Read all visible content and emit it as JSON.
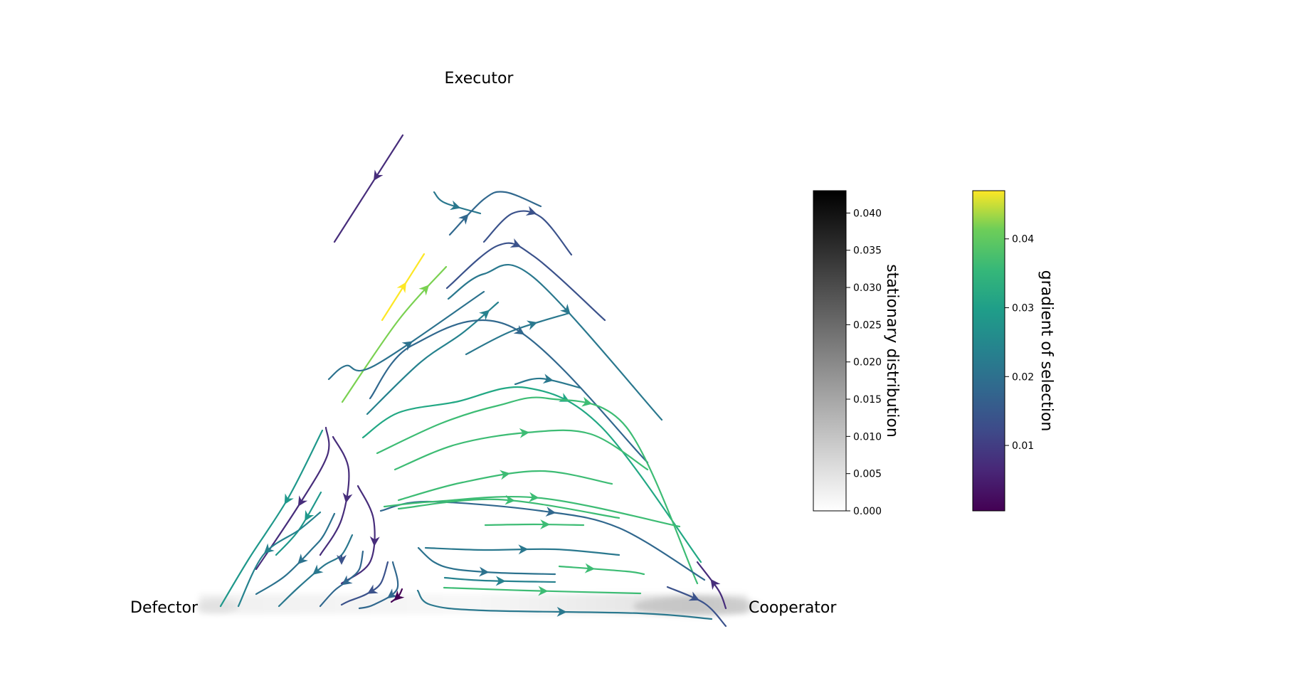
{
  "chart_data": {
    "type": "ternary-streamplot",
    "vertices": {
      "top": "Executor",
      "bottom_left": "Defector",
      "bottom_right": "Cooperator"
    },
    "colorbars": [
      {
        "id": "stationary",
        "label": "stationary distribution",
        "colormap": "Greys",
        "range": [
          0.0,
          0.043
        ],
        "ticks": [
          0.0,
          0.005,
          0.01,
          0.015,
          0.02,
          0.025,
          0.03,
          0.035,
          0.04
        ],
        "tick_labels": [
          "0.000",
          "0.005",
          "0.010",
          "0.015",
          "0.020",
          "0.025",
          "0.030",
          "0.035",
          "0.040"
        ]
      },
      {
        "id": "gradient",
        "label": "gradient of selection",
        "colormap": "viridis",
        "range": [
          0.0005,
          0.047
        ],
        "ticks": [
          0.01,
          0.02,
          0.03,
          0.04
        ],
        "tick_labels": [
          "0.01",
          "0.02",
          "0.03",
          "0.04"
        ]
      }
    ],
    "stationary_mass": "concentrated along the Defector–Cooperator edge, darkest near Cooperator",
    "streamlines": [
      {
        "color": "#472d7b",
        "pts": [
          [
            566,
            190
          ],
          [
            470,
            340
          ]
        ],
        "arrow": 0.38
      },
      {
        "color": "#2a788e",
        "pts": [
          [
            610,
            270
          ],
          [
            625,
            285
          ],
          [
            675,
            300
          ]
        ],
        "arrow": -1
      },
      {
        "color": "#fde725",
        "pts": [
          [
            537,
            450
          ],
          [
            570,
            398
          ],
          [
            596,
            357
          ]
        ],
        "arrow": 0.5
      },
      {
        "color": "#7ad151",
        "pts": [
          [
            481,
            565
          ],
          [
            560,
            450
          ],
          [
            627,
            375
          ]
        ],
        "arrow": 0.82
      },
      {
        "color": "#31688e",
        "pts": [
          [
            632,
            330
          ],
          [
            680,
            280
          ],
          [
            710,
            270
          ],
          [
            760,
            290
          ]
        ],
        "arrow": 0.2
      },
      {
        "color": "#3b528b",
        "pts": [
          [
            680,
            340
          ],
          [
            720,
            300
          ],
          [
            760,
            305
          ],
          [
            803,
            358
          ]
        ],
        "arrow": -1
      },
      {
        "color": "#3b528b",
        "pts": [
          [
            628,
            405
          ],
          [
            700,
            345
          ],
          [
            750,
            360
          ],
          [
            850,
            450
          ]
        ],
        "arrow": 0.42
      },
      {
        "color": "#2a788e",
        "pts": [
          [
            630,
            420
          ],
          [
            680,
            385
          ],
          [
            750,
            390
          ],
          [
            930,
            590
          ]
        ],
        "arrow": -1
      },
      {
        "color": "#26828e",
        "pts": [
          [
            516,
            582
          ],
          [
            590,
            510
          ],
          [
            650,
            468
          ],
          [
            700,
            425
          ]
        ],
        "arrow": 0.9
      },
      {
        "color": "#2c728e",
        "pts": [
          [
            462,
            533
          ],
          [
            486,
            514
          ],
          [
            526,
            514
          ],
          [
            680,
            410
          ]
        ],
        "arrow": -1
      },
      {
        "color": "#2a788e",
        "pts": [
          [
            655,
            498
          ],
          [
            720,
            465
          ],
          [
            800,
            440
          ]
        ],
        "arrow": 0.65
      },
      {
        "color": "#31688e",
        "pts": [
          [
            520,
            560
          ],
          [
            580,
            485
          ],
          [
            720,
            460
          ],
          [
            910,
            650
          ]
        ],
        "arrow": -1
      },
      {
        "color": "#2a788e",
        "pts": [
          [
            724,
            540
          ],
          [
            760,
            532
          ],
          [
            815,
            545
          ]
        ],
        "arrow": 0.5
      },
      {
        "color": "#22a884",
        "pts": [
          [
            510,
            615
          ],
          [
            560,
            580
          ],
          [
            640,
            565
          ],
          [
            740,
            545
          ],
          [
            845,
            600
          ],
          [
            985,
            790
          ]
        ],
        "arrow": -1
      },
      {
        "color": "#3dbc74",
        "pts": [
          [
            530,
            637
          ],
          [
            620,
            595
          ],
          [
            700,
            570
          ],
          [
            770,
            560
          ],
          [
            880,
            600
          ],
          [
            980,
            820
          ]
        ],
        "arrow": -1
      },
      {
        "color": "#3dbc74",
        "pts": [
          [
            555,
            660
          ],
          [
            640,
            625
          ],
          [
            740,
            608
          ],
          [
            830,
            610
          ],
          [
            910,
            660
          ]
        ],
        "arrow": -1
      },
      {
        "color": "#3dbc74",
        "pts": [
          [
            560,
            703
          ],
          [
            650,
            678
          ],
          [
            760,
            662
          ],
          [
            860,
            680
          ]
        ],
        "arrow": -1
      },
      {
        "color": "#31688e",
        "pts": [
          [
            535,
            718
          ],
          [
            600,
            705
          ],
          [
            760,
            718
          ],
          [
            870,
            742
          ],
          [
            990,
            815
          ]
        ],
        "arrow": -1
      },
      {
        "color": "#3dbc74",
        "pts": [
          [
            540,
            712
          ],
          [
            610,
            705
          ],
          [
            760,
            700
          ],
          [
            955,
            740
          ]
        ],
        "arrow": -1
      },
      {
        "color": "#3dbc74",
        "pts": [
          [
            560,
            715
          ],
          [
            700,
            702
          ],
          [
            870,
            728
          ]
        ],
        "arrow": -1
      },
      {
        "color": "#2a788e",
        "pts": [
          [
            598,
            770
          ],
          [
            680,
            773
          ],
          [
            780,
            772
          ],
          [
            870,
            780
          ]
        ],
        "arrow": -1
      },
      {
        "color": "#3dbc74",
        "pts": [
          [
            682,
            738
          ],
          [
            750,
            737
          ],
          [
            820,
            738
          ]
        ],
        "arrow": 0.6
      },
      {
        "color": "#26828e",
        "pts": [
          [
            625,
            812
          ],
          [
            680,
            816
          ],
          [
            780,
            818
          ]
        ],
        "arrow": -1
      },
      {
        "color": "#3dbc74",
        "pts": [
          [
            786,
            796
          ],
          [
            880,
            803
          ],
          [
            905,
            807
          ]
        ],
        "arrow": 0.35
      },
      {
        "color": "#2c728e",
        "pts": [
          [
            588,
            770
          ],
          [
            610,
            790
          ],
          [
            640,
            800
          ],
          [
            700,
            805
          ],
          [
            780,
            807
          ]
        ],
        "arrow": -1
      },
      {
        "color": "#3dbc74",
        "pts": [
          [
            624,
            826
          ],
          [
            740,
            830
          ],
          [
            900,
            834
          ]
        ],
        "arrow": -1
      },
      {
        "color": "#2a788e",
        "pts": [
          [
            587,
            830
          ],
          [
            605,
            850
          ],
          [
            680,
            858
          ],
          [
            900,
            862
          ],
          [
            1000,
            870
          ]
        ],
        "arrow": -1
      },
      {
        "color": "#3b528b",
        "pts": [
          [
            938,
            825
          ],
          [
            990,
            848
          ],
          [
            1020,
            880
          ]
        ],
        "arrow": 0.4
      },
      {
        "color": "#472d7b",
        "pts": [
          [
            1020,
            855
          ],
          [
            1010,
            830
          ],
          [
            980,
            790
          ]
        ],
        "arrow": -1
      },
      {
        "color": "#472d7b",
        "pts": [
          [
            458,
            601
          ],
          [
            460,
            640
          ],
          [
            420,
            710
          ],
          [
            360,
            800
          ]
        ],
        "arrow": -1
      },
      {
        "color": "#472d7b",
        "pts": [
          [
            468,
            614
          ],
          [
            490,
            660
          ],
          [
            480,
            730
          ],
          [
            450,
            780
          ]
        ],
        "arrow": -1
      },
      {
        "color": "#472d7b",
        "pts": [
          [
            503,
            683
          ],
          [
            525,
            730
          ],
          [
            520,
            790
          ],
          [
            480,
            820
          ]
        ],
        "arrow": -1
      },
      {
        "color": "#31688e",
        "pts": [
          [
            552,
            790
          ],
          [
            558,
            828
          ],
          [
            525,
            850
          ],
          [
            505,
            855
          ]
        ],
        "arrow": -1
      },
      {
        "color": "#1f988b",
        "pts": [
          [
            453,
            605
          ],
          [
            405,
            700
          ],
          [
            350,
            785
          ],
          [
            310,
            852
          ]
        ],
        "arrow": 0.38
      },
      {
        "color": "#1f988b",
        "pts": [
          [
            451,
            692
          ],
          [
            420,
            745
          ],
          [
            388,
            780
          ]
        ],
        "arrow": 0.35
      },
      {
        "color": "#26828e",
        "pts": [
          [
            450,
            720
          ],
          [
            420,
            745
          ],
          [
            370,
            780
          ],
          [
            335,
            852
          ]
        ],
        "arrow": -1
      },
      {
        "color": "#2c728e",
        "pts": [
          [
            470,
            722
          ],
          [
            455,
            752
          ],
          [
            440,
            770
          ],
          [
            400,
            810
          ],
          [
            360,
            835
          ]
        ],
        "arrow": -1
      },
      {
        "color": "#2a788e",
        "pts": [
          [
            495,
            752
          ],
          [
            480,
            780
          ],
          [
            455,
            795
          ],
          [
            420,
            825
          ],
          [
            392,
            852
          ]
        ],
        "arrow": -1
      },
      {
        "color": "#3b528b",
        "pts": [
          [
            480,
            781
          ],
          [
            480,
            790
          ]
        ],
        "arrow": -1
      },
      {
        "color": "#31688e",
        "pts": [
          [
            510,
            775
          ],
          [
            505,
            800
          ],
          [
            490,
            815
          ],
          [
            470,
            830
          ],
          [
            450,
            852
          ]
        ],
        "arrow": -1
      },
      {
        "color": "#3b528b",
        "pts": [
          [
            545,
            790
          ],
          [
            535,
            820
          ],
          [
            515,
            835
          ],
          [
            490,
            845
          ],
          [
            480,
            850
          ]
        ],
        "arrow": -1
      },
      {
        "color": "#440154",
        "pts": [
          [
            565,
            828
          ],
          [
            560,
            838
          ],
          [
            550,
            846
          ]
        ],
        "arrow": -1
      }
    ]
  }
}
